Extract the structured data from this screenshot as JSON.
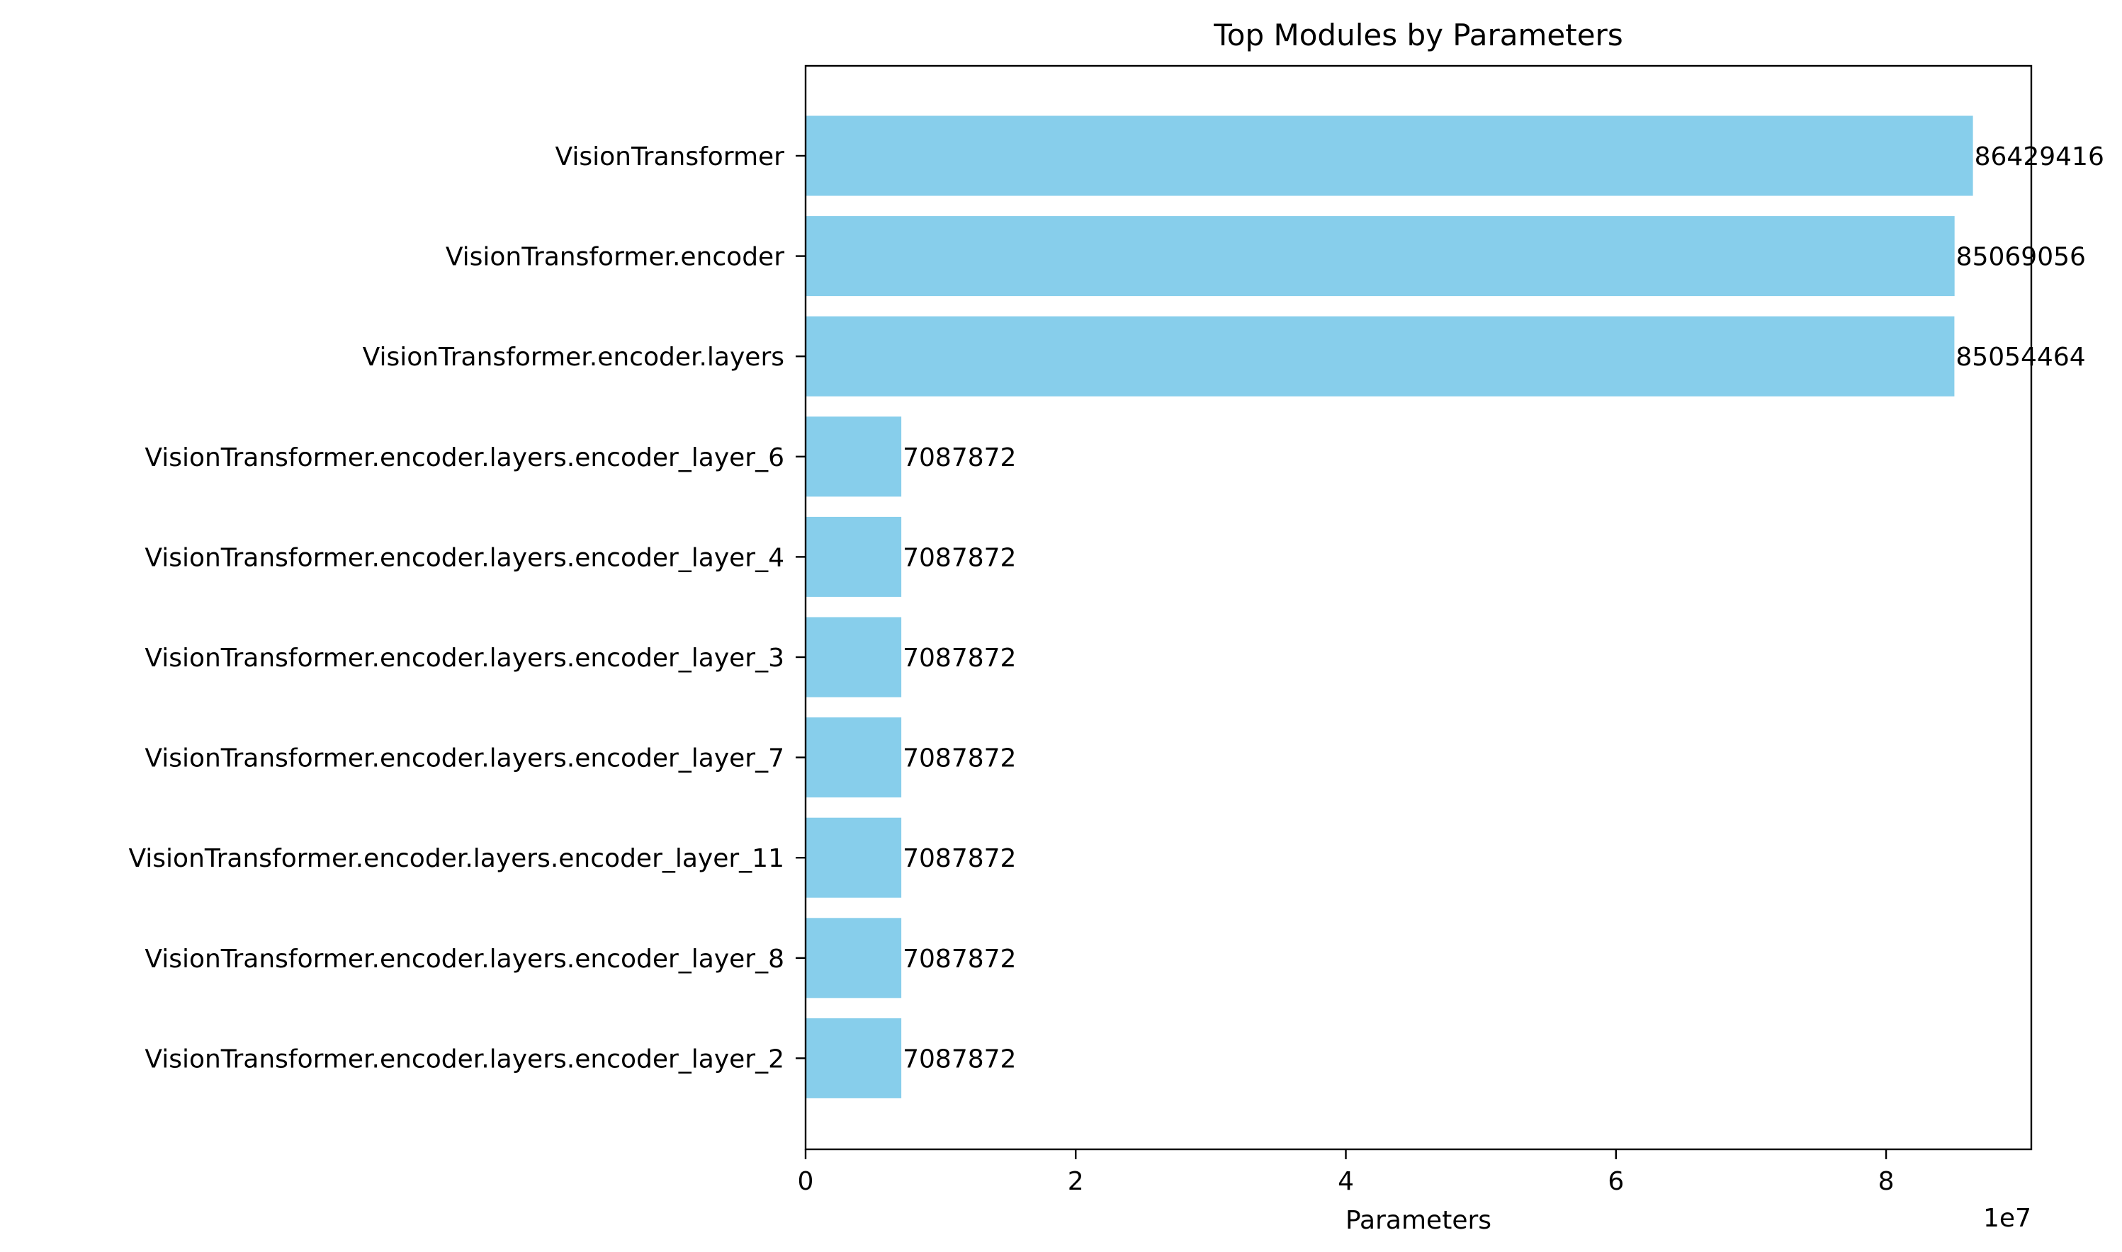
{
  "chart_data": {
    "type": "bar",
    "orientation": "horizontal",
    "title": "Top Modules by Parameters",
    "xlabel": "Parameters",
    "ylabel": "",
    "x_offset_label": "1e7",
    "xlim": [
      0,
      90751000
    ],
    "x_ticks": [
      0,
      20000000,
      40000000,
      60000000,
      80000000
    ],
    "x_tick_labels": [
      "0",
      "2",
      "4",
      "6",
      "8"
    ],
    "categories": [
      "VisionTransformer",
      "VisionTransformer.encoder",
      "VisionTransformer.encoder.layers",
      "VisionTransformer.encoder.layers.encoder_layer_6",
      "VisionTransformer.encoder.layers.encoder_layer_4",
      "VisionTransformer.encoder.layers.encoder_layer_3",
      "VisionTransformer.encoder.layers.encoder_layer_7",
      "VisionTransformer.encoder.layers.encoder_layer_11",
      "VisionTransformer.encoder.layers.encoder_layer_8",
      "VisionTransformer.encoder.layers.encoder_layer_2"
    ],
    "values": [
      86429416,
      85069056,
      85054464,
      7087872,
      7087872,
      7087872,
      7087872,
      7087872,
      7087872,
      7087872
    ],
    "value_labels": [
      "86429416",
      "85069056",
      "85054464",
      "7087872",
      "7087872",
      "7087872",
      "7087872",
      "7087872",
      "7087872",
      "7087872"
    ],
    "bar_color": "#87CEEB",
    "grid": false,
    "legend": "none"
  }
}
